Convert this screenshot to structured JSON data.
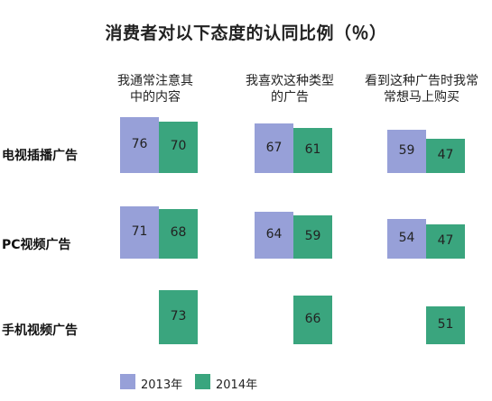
{
  "chart_data": {
    "type": "bar",
    "title": "消费者对以下态度的认同比例（％）",
    "columns": [
      "我通常注意其中的内容",
      "我喜欢这种类型的广告",
      "看到这种广告时我常常想马上购买"
    ],
    "column_header_lines": [
      [
        "我通常注意其",
        "中的内容"
      ],
      [
        "我喜欢这种类型",
        "的广告"
      ],
      [
        "看到这种广告时我常",
        "常想马上购买"
      ]
    ],
    "rows": [
      "电视插播广告",
      "PC视频广告",
      "手机视频广告"
    ],
    "series": [
      {
        "name": "2013年",
        "color": "#97a0d8",
        "values": [
          [
            76,
            67,
            59
          ],
          [
            71,
            64,
            54
          ],
          [
            null,
            null,
            null
          ]
        ]
      },
      {
        "name": "2014年",
        "color": "#3aa57e",
        "values": [
          [
            70,
            61,
            47
          ],
          [
            68,
            59,
            47
          ],
          [
            73,
            66,
            51
          ]
        ]
      }
    ]
  }
}
